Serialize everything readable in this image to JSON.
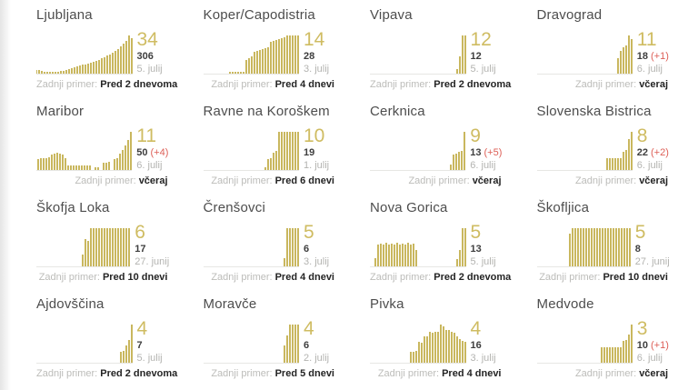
{
  "strings": {
    "last_case_label": "Zadnji primer:"
  },
  "colors": {
    "bar": "#c9b75e",
    "big_number": "#cfbc62",
    "delta_red": "#dd5f57"
  },
  "chart_note": "16 sparkline bar charts; values are relative daily-case bar heights 0-100 (no visible axis labels)",
  "chart_data": [
    {
      "type": "bar",
      "title": "Ljubljana",
      "big_number": "34",
      "total": "306",
      "delta": "",
      "date": "5. julij",
      "last_case": "Pred 2 dnevoma",
      "values": [
        10,
        9,
        8,
        6,
        5,
        5,
        5,
        6,
        6,
        7,
        8,
        10,
        13,
        15,
        17,
        19,
        21,
        23,
        25,
        27,
        29,
        31,
        34,
        37,
        40,
        43,
        47,
        51,
        55,
        60,
        65,
        71,
        78,
        85,
        100,
        92
      ]
    },
    {
      "type": "bar",
      "title": "Koper/Capodistria",
      "big_number": "14",
      "total": "28",
      "delta": "",
      "date": "3. julij",
      "last_case": "Pred 4 dnevi",
      "values": [
        0,
        0,
        0,
        0,
        0,
        0,
        0,
        0,
        0,
        0,
        6,
        6,
        6,
        6,
        6,
        6,
        35,
        40,
        45,
        58,
        60,
        63,
        65,
        67,
        70,
        84,
        86,
        88,
        91,
        94,
        96,
        100,
        100,
        100,
        100,
        100
      ]
    },
    {
      "type": "bar",
      "title": "Vipava",
      "big_number": "12",
      "total": "12",
      "delta": "",
      "date": "5. julij",
      "last_case": "Pred 2 dnevoma",
      "values": [
        0,
        0,
        0,
        0,
        0,
        0,
        0,
        0,
        0,
        0,
        0,
        0,
        0,
        0,
        0,
        0,
        0,
        0,
        0,
        0,
        0,
        0,
        0,
        0,
        0,
        0,
        0,
        0,
        0,
        0,
        0,
        0,
        12,
        45,
        100,
        100
      ]
    },
    {
      "type": "bar",
      "title": "Dravograd",
      "big_number": "11",
      "total": "18",
      "delta": "(+1)",
      "date": "6. julij",
      "last_case": "včeraj",
      "values": [
        0,
        0,
        0,
        0,
        0,
        0,
        0,
        0,
        0,
        0,
        0,
        0,
        0,
        0,
        0,
        0,
        0,
        0,
        0,
        0,
        0,
        0,
        0,
        0,
        0,
        0,
        0,
        0,
        0,
        0,
        40,
        60,
        68,
        75,
        100,
        90
      ]
    },
    {
      "type": "bar",
      "title": "Maribor",
      "big_number": "11",
      "total": "50",
      "delta": "(+4)",
      "date": "6. julij",
      "last_case": "včeraj",
      "values": [
        26,
        28,
        30,
        32,
        30,
        33,
        40,
        44,
        46,
        44,
        40,
        30,
        12,
        12,
        12,
        12,
        12,
        12,
        12,
        12,
        12,
        0,
        8,
        8,
        0,
        18,
        20,
        22,
        0,
        28,
        30,
        42,
        52,
        64,
        78,
        100
      ]
    },
    {
      "type": "bar",
      "title": "Ravne na Koroškem",
      "big_number": "10",
      "total": "19",
      "delta": "",
      "date": "1. julij",
      "last_case": "Pred 6 dnevi",
      "values": [
        0,
        0,
        0,
        0,
        0,
        0,
        0,
        0,
        0,
        0,
        0,
        0,
        0,
        0,
        0,
        0,
        0,
        0,
        0,
        0,
        0,
        0,
        0,
        8,
        28,
        32,
        45,
        50,
        100,
        100,
        100,
        100,
        100,
        100,
        100,
        100
      ]
    },
    {
      "type": "bar",
      "title": "Cerknica",
      "big_number": "9",
      "total": "13",
      "delta": "(+5)",
      "date": "6. julij",
      "last_case": "včeraj",
      "values": [
        0,
        0,
        0,
        0,
        0,
        0,
        0,
        0,
        0,
        0,
        0,
        0,
        0,
        0,
        0,
        0,
        0,
        0,
        0,
        0,
        0,
        0,
        0,
        0,
        0,
        0,
        0,
        0,
        0,
        0,
        15,
        40,
        44,
        47,
        50,
        100
      ]
    },
    {
      "type": "bar",
      "title": "Slovenska Bistrica",
      "big_number": "8",
      "total": "22",
      "delta": "(+2)",
      "date": "6. julij",
      "last_case": "včeraj",
      "values": [
        0,
        0,
        0,
        0,
        0,
        0,
        0,
        0,
        0,
        0,
        0,
        0,
        0,
        0,
        0,
        0,
        0,
        0,
        0,
        0,
        0,
        0,
        0,
        0,
        0,
        0,
        30,
        30,
        30,
        30,
        30,
        32,
        48,
        52,
        80,
        100
      ]
    },
    {
      "type": "bar",
      "title": "Škofja Loka",
      "big_number": "6",
      "total": "17",
      "delta": "",
      "date": "27. junij",
      "last_case": "Pred 10 dnevi",
      "values": [
        0,
        0,
        0,
        0,
        0,
        0,
        0,
        0,
        0,
        0,
        0,
        0,
        0,
        0,
        0,
        0,
        0,
        0,
        32,
        72,
        66,
        100,
        100,
        100,
        100,
        100,
        100,
        100,
        100,
        100,
        100,
        100,
        100,
        100,
        100,
        100
      ]
    },
    {
      "type": "bar",
      "title": "Črenšovci",
      "big_number": "5",
      "total": "6",
      "delta": "",
      "date": "3. julij",
      "last_case": "Pred 4 dnevi",
      "values": [
        0,
        0,
        0,
        0,
        0,
        0,
        0,
        0,
        0,
        0,
        0,
        0,
        0,
        0,
        0,
        0,
        0,
        0,
        0,
        0,
        0,
        0,
        0,
        0,
        0,
        0,
        0,
        0,
        0,
        0,
        22,
        100,
        100,
        100,
        100,
        100
      ]
    },
    {
      "type": "bar",
      "title": "Nova Gorica",
      "big_number": "5",
      "total": "13",
      "delta": "",
      "date": "5. julij",
      "last_case": "Pred 2 dnevoma",
      "values": [
        0,
        0,
        22,
        58,
        60,
        58,
        62,
        58,
        60,
        58,
        62,
        58,
        60,
        58,
        62,
        58,
        60,
        44,
        0,
        0,
        0,
        0,
        0,
        0,
        0,
        0,
        0,
        0,
        0,
        0,
        0,
        0,
        20,
        42,
        100,
        100
      ]
    },
    {
      "type": "bar",
      "title": "Škofljica",
      "big_number": "5",
      "total": "8",
      "delta": "",
      "date": "27. junij",
      "last_case": "Pred 10 dnevi",
      "values": [
        0,
        0,
        0,
        0,
        0,
        0,
        0,
        0,
        0,
        0,
        0,
        0,
        0,
        85,
        100,
        100,
        100,
        100,
        100,
        100,
        100,
        100,
        100,
        100,
        100,
        100,
        100,
        100,
        100,
        100,
        100,
        100,
        100,
        100,
        100,
        100
      ]
    },
    {
      "type": "bar",
      "title": "Ajdovščina",
      "big_number": "4",
      "total": "7",
      "delta": "",
      "date": "5. julij",
      "last_case": "Pred 2 dnevoma",
      "values": [
        0,
        0,
        0,
        0,
        0,
        0,
        0,
        0,
        0,
        0,
        0,
        0,
        0,
        0,
        0,
        0,
        0,
        0,
        0,
        0,
        0,
        0,
        0,
        0,
        0,
        0,
        0,
        0,
        0,
        0,
        0,
        28,
        30,
        45,
        60,
        100
      ]
    },
    {
      "type": "bar",
      "title": "Moravče",
      "big_number": "4",
      "total": "6",
      "delta": "",
      "date": "2. julij",
      "last_case": "Pred 5 dnevi",
      "values": [
        0,
        0,
        0,
        0,
        0,
        0,
        0,
        0,
        0,
        0,
        0,
        0,
        0,
        0,
        0,
        0,
        0,
        0,
        0,
        0,
        0,
        0,
        0,
        0,
        0,
        0,
        0,
        0,
        0,
        0,
        45,
        72,
        100,
        100,
        100,
        100
      ]
    },
    {
      "type": "bar",
      "title": "Pivka",
      "big_number": "4",
      "total": "16",
      "delta": "",
      "date": "3. julij",
      "last_case": "Pred 4 dnevi",
      "values": [
        0,
        0,
        0,
        0,
        0,
        0,
        0,
        0,
        0,
        0,
        0,
        0,
        0,
        0,
        0,
        28,
        28,
        30,
        55,
        53,
        70,
        68,
        80,
        78,
        80,
        82,
        100,
        95,
        85,
        85,
        80,
        78,
        68,
        62,
        58,
        55
      ]
    },
    {
      "type": "bar",
      "title": "Medvode",
      "big_number": "3",
      "total": "10",
      "delta": "(+1)",
      "date": "6. julij",
      "last_case": "včeraj",
      "values": [
        0,
        0,
        0,
        0,
        0,
        0,
        0,
        0,
        0,
        0,
        0,
        0,
        0,
        0,
        0,
        0,
        0,
        0,
        0,
        0,
        0,
        0,
        0,
        0,
        40,
        40,
        40,
        40,
        40,
        40,
        40,
        40,
        58,
        60,
        75,
        100
      ]
    }
  ]
}
